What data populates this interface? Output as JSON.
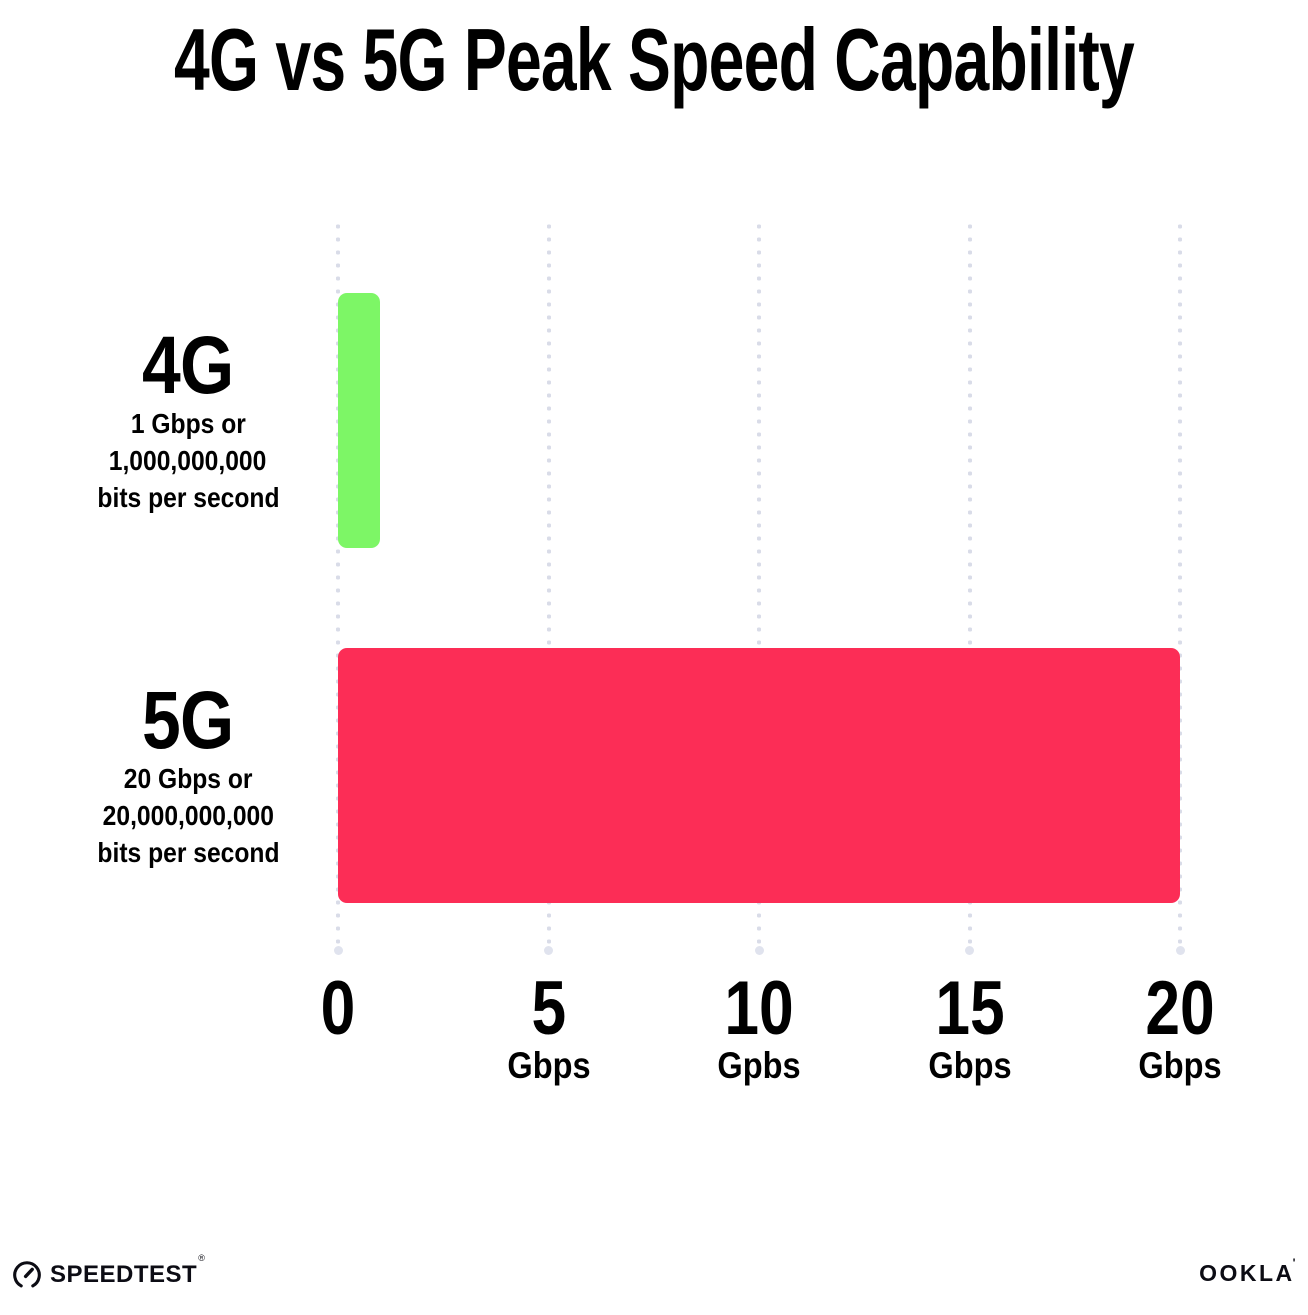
{
  "title": "4G vs 5G Peak Speed Capability",
  "chart_data": {
    "type": "bar",
    "orientation": "horizontal",
    "title": "4G vs 5G Peak Speed Capability",
    "categories": [
      "4G",
      "5G"
    ],
    "values": [
      1,
      20
    ],
    "value_unit": "Gbps",
    "xlim": [
      0,
      20
    ],
    "bar_colors": [
      "#7DF666",
      "#FC2D56"
    ],
    "grid": "dotted vertical gridlines at each x tick, ending in a larger dot at bottom",
    "legend": "none",
    "rows": [
      {
        "name": "4G",
        "value": 1,
        "sub_lines": [
          "1 Gbps or",
          "1,000,000,000",
          "bits per second"
        ]
      },
      {
        "name": "5G",
        "value": 20,
        "sub_lines": [
          "20 Gbps or",
          "20,000,000,000",
          "bits per second"
        ]
      }
    ],
    "x_ticks": [
      {
        "value": 0,
        "label": "0",
        "unit": ""
      },
      {
        "value": 5,
        "label": "5",
        "unit": "Gbps"
      },
      {
        "value": 10,
        "label": "10",
        "unit": "Gpbs"
      },
      {
        "value": 15,
        "label": "15",
        "unit": "Gbps"
      },
      {
        "value": 20,
        "label": "20",
        "unit": "Gbps"
      }
    ]
  },
  "footer": {
    "speedtest_label": "SPEEDTEST",
    "speedtest_mark": "®",
    "ookla_label": "OOKLA",
    "ookla_mark": "'"
  },
  "colors": {
    "background": "#FFFFFF",
    "text": "#000000",
    "grid_dot": "#D9DCE8",
    "bar_4g": "#7DF666",
    "bar_5g": "#FC2D56"
  }
}
